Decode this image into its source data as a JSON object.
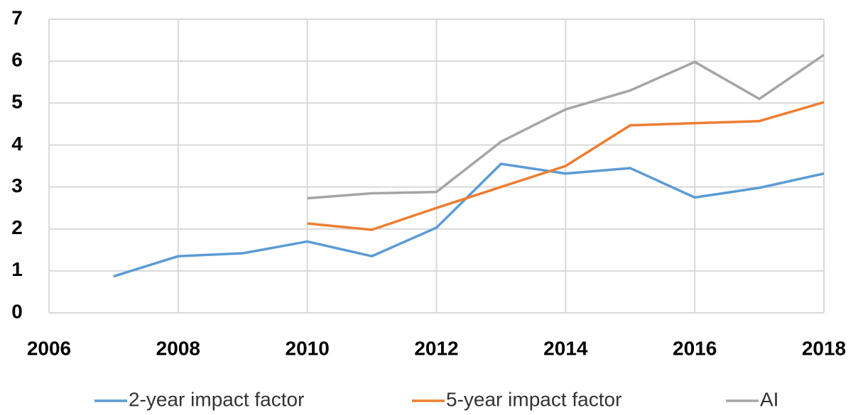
{
  "chart_data": {
    "type": "line",
    "x": [
      2007,
      2008,
      2009,
      2010,
      2011,
      2012,
      2013,
      2014,
      2015,
      2016,
      2017,
      2018
    ],
    "series": [
      {
        "name": "2-year impact factor",
        "color": "#5b9bd5",
        "values": [
          0.87,
          1.35,
          1.42,
          1.7,
          1.35,
          2.03,
          3.55,
          3.32,
          3.45,
          2.75,
          2.98,
          3.32
        ]
      },
      {
        "name": "5-year impact factor",
        "color": "#ed7d31",
        "values": [
          null,
          null,
          null,
          2.13,
          1.98,
          2.5,
          3.0,
          3.5,
          4.47,
          4.52,
          4.57,
          5.02
        ]
      },
      {
        "name": "AI",
        "color": "#a5a5a5",
        "values": [
          null,
          null,
          null,
          2.73,
          2.85,
          2.88,
          4.08,
          4.85,
          5.3,
          5.98,
          5.1,
          6.15
        ]
      }
    ],
    "xlim": [
      2006,
      2018
    ],
    "xticks": [
      2006,
      2008,
      2010,
      2012,
      2014,
      2016,
      2018
    ],
    "ylim": [
      0,
      7
    ],
    "yticks": [
      0,
      1,
      2,
      3,
      4,
      5,
      6,
      7
    ],
    "grid": true,
    "legend": "bottom"
  }
}
